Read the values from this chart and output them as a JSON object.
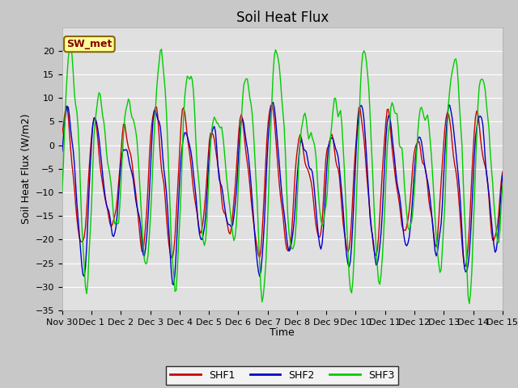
{
  "title": "Soil Heat Flux",
  "ylabel": "Soil Heat Flux (W/m2)",
  "xlabel": "Time",
  "annotation": "SW_met",
  "ylim": [
    -35,
    25
  ],
  "yticks": [
    -35,
    -30,
    -25,
    -20,
    -15,
    -10,
    -5,
    0,
    5,
    10,
    15,
    20
  ],
  "xtick_labels": [
    "Nov 30",
    "Dec 1",
    "Dec 2",
    "Dec 3",
    "Dec 4",
    "Dec 5",
    "Dec 6",
    "Dec 7",
    "Dec 8",
    "Dec 9",
    "Dec 10",
    "Dec 11",
    "Dec 12",
    "Dec 13",
    "Dec 14",
    "Dec 15"
  ],
  "shf1_color": "#cc0000",
  "shf2_color": "#0000cc",
  "shf3_color": "#00cc00",
  "fig_bg_color": "#c8c8c8",
  "plot_bg_color": "#e0e0e0",
  "grid_color": "#ffffff",
  "title_fontsize": 12,
  "label_fontsize": 9,
  "tick_fontsize": 8,
  "annotation_bg": "#ffff99",
  "annotation_border": "#886600",
  "annotation_text_color": "#880000",
  "legend_labels": [
    "SHF1",
    "SHF2",
    "SHF3"
  ],
  "linewidth": 1.0
}
